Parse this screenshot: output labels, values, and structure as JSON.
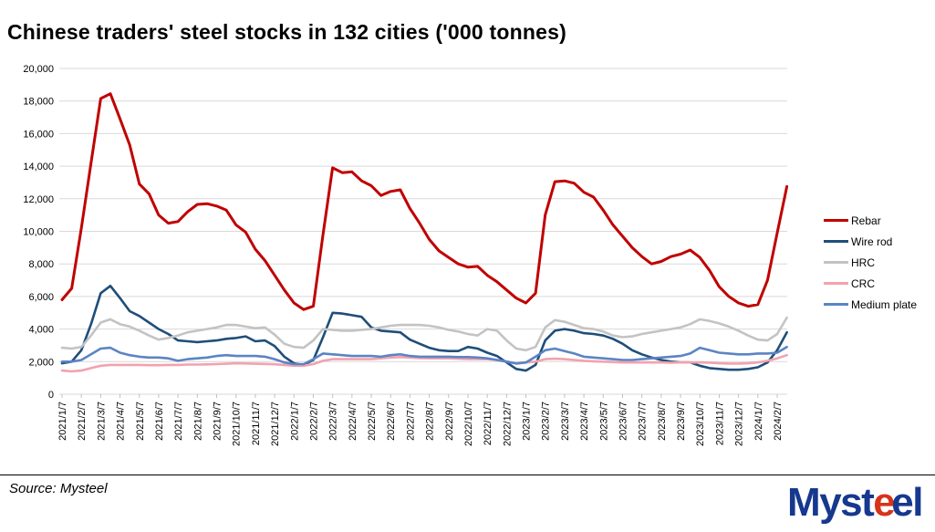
{
  "title": "Chinese traders' steel stocks in 132 cities ('000 tonnes)",
  "source_note": "Source: Mysteel",
  "logo": {
    "part1": "Myst",
    "part2": "e",
    "part3": "e",
    "part4": "l",
    "blue": "#16388E",
    "red": "#D7331B"
  },
  "chart_data": {
    "type": "line",
    "title": "Chinese traders' steel stocks in 132 cities ('000 tonnes)",
    "xlabel": "",
    "ylabel": "'000 tonnes",
    "ylim": [
      0,
      20000
    ],
    "y_tick_step": 2000,
    "y_tick_labels": [
      "0",
      "2,000",
      "4,000",
      "6,000",
      "8,000",
      "10,000",
      "12,000",
      "14,000",
      "16,000",
      "18,000",
      "20,000"
    ],
    "grid": "horizontal",
    "legend_position": "right",
    "points_per_tick": 2,
    "x_ticks": [
      "2021/1/7",
      "2021/2/7",
      "2021/3/7",
      "2021/4/7",
      "2021/5/7",
      "2021/6/7",
      "2021/7/7",
      "2021/8/7",
      "2021/9/7",
      "2021/10/7",
      "2021/11/7",
      "2021/12/7",
      "2022/1/7",
      "2022/2/7",
      "2022/3/7",
      "2022/4/7",
      "2022/5/7",
      "2022/6/7",
      "2022/7/7",
      "2022/8/7",
      "2022/9/7",
      "2022/10/7",
      "2022/11/7",
      "2022/12/7",
      "2023/1/7",
      "2023/2/7",
      "2023/3/7",
      "2023/4/7",
      "2023/5/7",
      "2023/6/7",
      "2023/7/7",
      "2023/8/7",
      "2023/9/7",
      "2023/10/7",
      "2023/11/7",
      "2023/12/7",
      "2024/1/7",
      "2024/2/7"
    ],
    "series": [
      {
        "name": "Rebar",
        "color": "#C00000",
        "width": 3,
        "values": [
          5800,
          6500,
          10200,
          14200,
          18150,
          18450,
          16900,
          15300,
          12900,
          12300,
          11000,
          10500,
          10600,
          11200,
          11650,
          11700,
          11550,
          11300,
          10400,
          9950,
          8900,
          8200,
          7300,
          6400,
          5600,
          5200,
          5400,
          9800,
          13900,
          13600,
          13650,
          13100,
          12800,
          12200,
          12450,
          12550,
          11400,
          10500,
          9500,
          8800,
          8400,
          8000,
          7800,
          7850,
          7300,
          6900,
          6400,
          5900,
          5600,
          6200,
          11000,
          13050,
          13100,
          12950,
          12400,
          12100,
          11300,
          10400,
          9700,
          9000,
          8450,
          8000,
          8150,
          8450,
          8600,
          8850,
          8400,
          7600,
          6600,
          6000,
          5600,
          5400,
          5500,
          7000,
          9900,
          12750
        ]
      },
      {
        "name": "Wire rod",
        "color": "#1F4E79",
        "width": 2.6,
        "values": [
          1900,
          2000,
          2700,
          4300,
          6200,
          6650,
          5900,
          5100,
          4800,
          4400,
          4000,
          3700,
          3300,
          3250,
          3200,
          3250,
          3300,
          3400,
          3450,
          3550,
          3250,
          3300,
          2950,
          2300,
          1900,
          1800,
          2100,
          3500,
          5000,
          4950,
          4850,
          4750,
          4100,
          3900,
          3850,
          3800,
          3350,
          3100,
          2850,
          2700,
          2650,
          2650,
          2900,
          2800,
          2550,
          2350,
          1950,
          1550,
          1450,
          1800,
          3300,
          3900,
          4000,
          3900,
          3750,
          3700,
          3600,
          3400,
          3100,
          2700,
          2450,
          2250,
          2100,
          2000,
          1950,
          1950,
          1750,
          1600,
          1550,
          1500,
          1500,
          1550,
          1650,
          1950,
          2700,
          3800
        ]
      },
      {
        "name": "HRC",
        "color": "#C3C3C3",
        "width": 2.6,
        "values": [
          2850,
          2800,
          2900,
          3600,
          4400,
          4600,
          4300,
          4150,
          3900,
          3600,
          3350,
          3450,
          3600,
          3800,
          3900,
          4000,
          4100,
          4250,
          4250,
          4150,
          4050,
          4100,
          3650,
          3100,
          2900,
          2850,
          3300,
          4000,
          3950,
          3900,
          3900,
          3950,
          4000,
          4100,
          4200,
          4250,
          4250,
          4250,
          4200,
          4100,
          3950,
          3850,
          3700,
          3600,
          4000,
          3900,
          3300,
          2800,
          2700,
          2900,
          4100,
          4550,
          4450,
          4250,
          4050,
          4000,
          3850,
          3600,
          3500,
          3550,
          3700,
          3800,
          3900,
          4000,
          4100,
          4300,
          4600,
          4500,
          4350,
          4150,
          3900,
          3600,
          3350,
          3300,
          3700,
          4700
        ]
      },
      {
        "name": "CRC",
        "color": "#F2A2AE",
        "width": 2.6,
        "values": [
          1450,
          1400,
          1450,
          1600,
          1750,
          1800,
          1800,
          1800,
          1800,
          1780,
          1780,
          1800,
          1800,
          1820,
          1820,
          1830,
          1850,
          1870,
          1900,
          1890,
          1870,
          1860,
          1840,
          1800,
          1750,
          1750,
          1850,
          2050,
          2150,
          2150,
          2150,
          2150,
          2150,
          2200,
          2250,
          2280,
          2250,
          2220,
          2200,
          2200,
          2200,
          2180,
          2150,
          2150,
          2150,
          2100,
          2000,
          1900,
          1950,
          2000,
          2150,
          2180,
          2150,
          2100,
          2050,
          2020,
          2000,
          1980,
          1950,
          1950,
          1950,
          1950,
          1950,
          1930,
          1950,
          1950,
          1950,
          1930,
          1900,
          1880,
          1880,
          1900,
          1950,
          2050,
          2200,
          2400
        ]
      },
      {
        "name": "Medium plate",
        "color": "#5B84C4",
        "width": 2.6,
        "values": [
          2000,
          2000,
          2100,
          2450,
          2800,
          2850,
          2550,
          2400,
          2300,
          2250,
          2250,
          2200,
          2050,
          2150,
          2200,
          2250,
          2350,
          2400,
          2350,
          2350,
          2350,
          2300,
          2150,
          1950,
          1850,
          1850,
          2150,
          2500,
          2450,
          2400,
          2350,
          2350,
          2350,
          2300,
          2400,
          2450,
          2350,
          2300,
          2300,
          2300,
          2300,
          2280,
          2280,
          2250,
          2200,
          2100,
          2000,
          1880,
          1950,
          2300,
          2700,
          2800,
          2650,
          2500,
          2300,
          2250,
          2200,
          2150,
          2100,
          2100,
          2150,
          2200,
          2250,
          2300,
          2350,
          2500,
          2850,
          2700,
          2550,
          2500,
          2450,
          2450,
          2500,
          2500,
          2550,
          2900
        ]
      }
    ]
  }
}
